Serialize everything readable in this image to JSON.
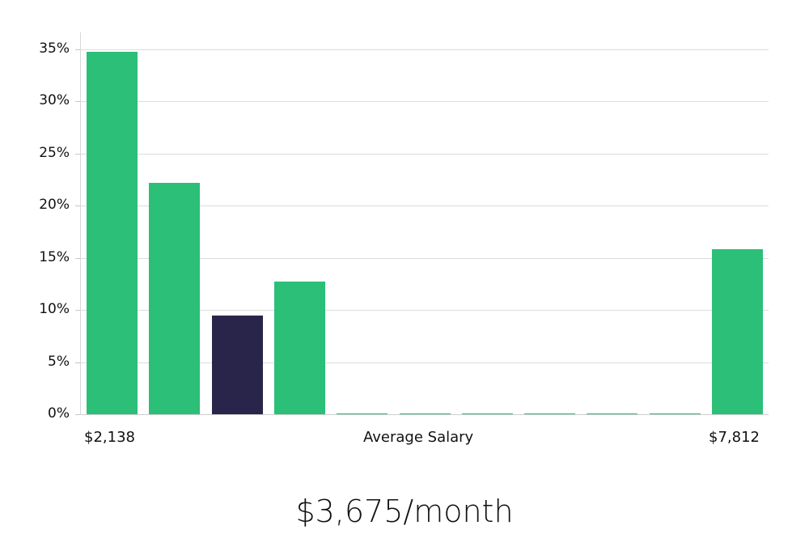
{
  "chart_data": {
    "type": "bar",
    "title": "",
    "xlabel": "Average Salary",
    "ylabel": "",
    "ylim": [
      0,
      35
    ],
    "yticks": [
      "0%",
      "5%",
      "10%",
      "15%",
      "20%",
      "25%",
      "30%",
      "35%"
    ],
    "x_range_labels": {
      "min": "$2,138",
      "max": "$7,812"
    },
    "categories": [
      "bin1",
      "bin2",
      "bin3",
      "bin4",
      "bin5",
      "bin6",
      "bin7",
      "bin8",
      "bin9",
      "bin10",
      "bin11"
    ],
    "values": [
      34.8,
      22.2,
      9.5,
      12.7,
      0,
      0,
      0,
      0,
      0,
      0,
      15.8
    ],
    "highlight_index": 2,
    "colors": {
      "default": "#2bbf78",
      "highlight": "#29254a"
    },
    "grid": true
  },
  "labels": {
    "x_min": "$2,138",
    "x_center": "Average Salary",
    "x_max": "$7,812",
    "summary": "$3,675/month"
  }
}
